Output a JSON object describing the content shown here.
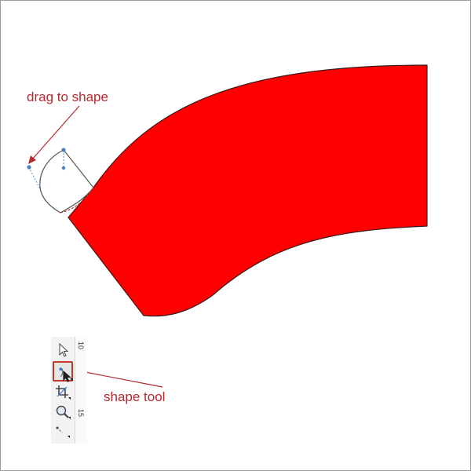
{
  "annotations": {
    "drag": "drag to shape",
    "tool": "shape tool"
  },
  "ruler": {
    "top_label": "10",
    "bottom_label": "15"
  },
  "toolbox": {
    "tools": [
      {
        "icon": "pick-tool-icon"
      },
      {
        "icon": "shape-tool-icon",
        "selected": true
      },
      {
        "icon": "crop-tool-icon"
      },
      {
        "icon": "zoom-tool-icon"
      },
      {
        "icon": "freehand-tool-icon"
      }
    ]
  },
  "colors": {
    "shape_fill": "#ff0000",
    "annotation": "#b4282e",
    "selected_tool_border": "#c0392b"
  }
}
